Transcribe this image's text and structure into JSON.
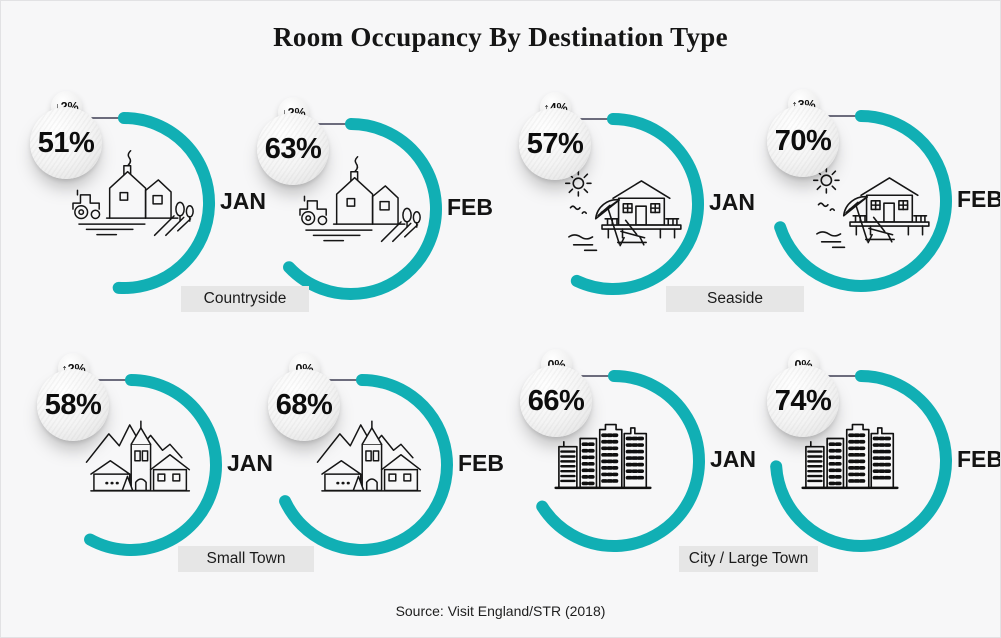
{
  "title": "Room Occupancy By Destination Type",
  "source": "Source: Visit England/STR (2018)",
  "colors": {
    "arc_teal": "#11AFB4",
    "background": "#F7F7F8",
    "label_box_bg": "#E6E6E6",
    "connector_line": "#3F3F54"
  },
  "chart_data": {
    "type": "radial_gauge_grid",
    "title": "Room Occupancy By Destination Type",
    "source": "Source: Visit England/STR (2018)",
    "unit": "percent_room_occupancy",
    "gauge_style": "arc starts at 12 o'clock, sweeps clockwise, fraction = value/100",
    "months": [
      "JAN",
      "FEB"
    ],
    "groups": [
      {
        "label": "Countryside",
        "illustration": "farmhouse",
        "gauges": [
          {
            "month": "JAN",
            "value": 51,
            "value_label": "51%",
            "change_label": "↓2%",
            "change_direction": "down"
          },
          {
            "month": "FEB",
            "value": 63,
            "value_label": "63%",
            "change_label": "↓2%",
            "change_direction": "down"
          }
        ]
      },
      {
        "label": "Seaside",
        "illustration": "beach-house",
        "gauges": [
          {
            "month": "JAN",
            "value": 57,
            "value_label": "57%",
            "change_label": "↑4%",
            "change_direction": "up"
          },
          {
            "month": "FEB",
            "value": 70,
            "value_label": "70%",
            "change_label": "↑3%",
            "change_direction": "up"
          }
        ]
      },
      {
        "label": "Small Town",
        "illustration": "mountain-village",
        "gauges": [
          {
            "month": "JAN",
            "value": 58,
            "value_label": "58%",
            "change_label": "↑2%",
            "change_direction": "up"
          },
          {
            "month": "FEB",
            "value": 68,
            "value_label": "68%",
            "change_label": "0%",
            "change_direction": "none"
          }
        ]
      },
      {
        "label": "City / Large Town",
        "illustration": "city-skyline",
        "gauges": [
          {
            "month": "JAN",
            "value": 66,
            "value_label": "66%",
            "change_label": "0%",
            "change_direction": "none"
          },
          {
            "month": "FEB",
            "value": 74,
            "value_label": "74%",
            "change_label": "0%",
            "change_direction": "none"
          }
        ]
      }
    ]
  }
}
